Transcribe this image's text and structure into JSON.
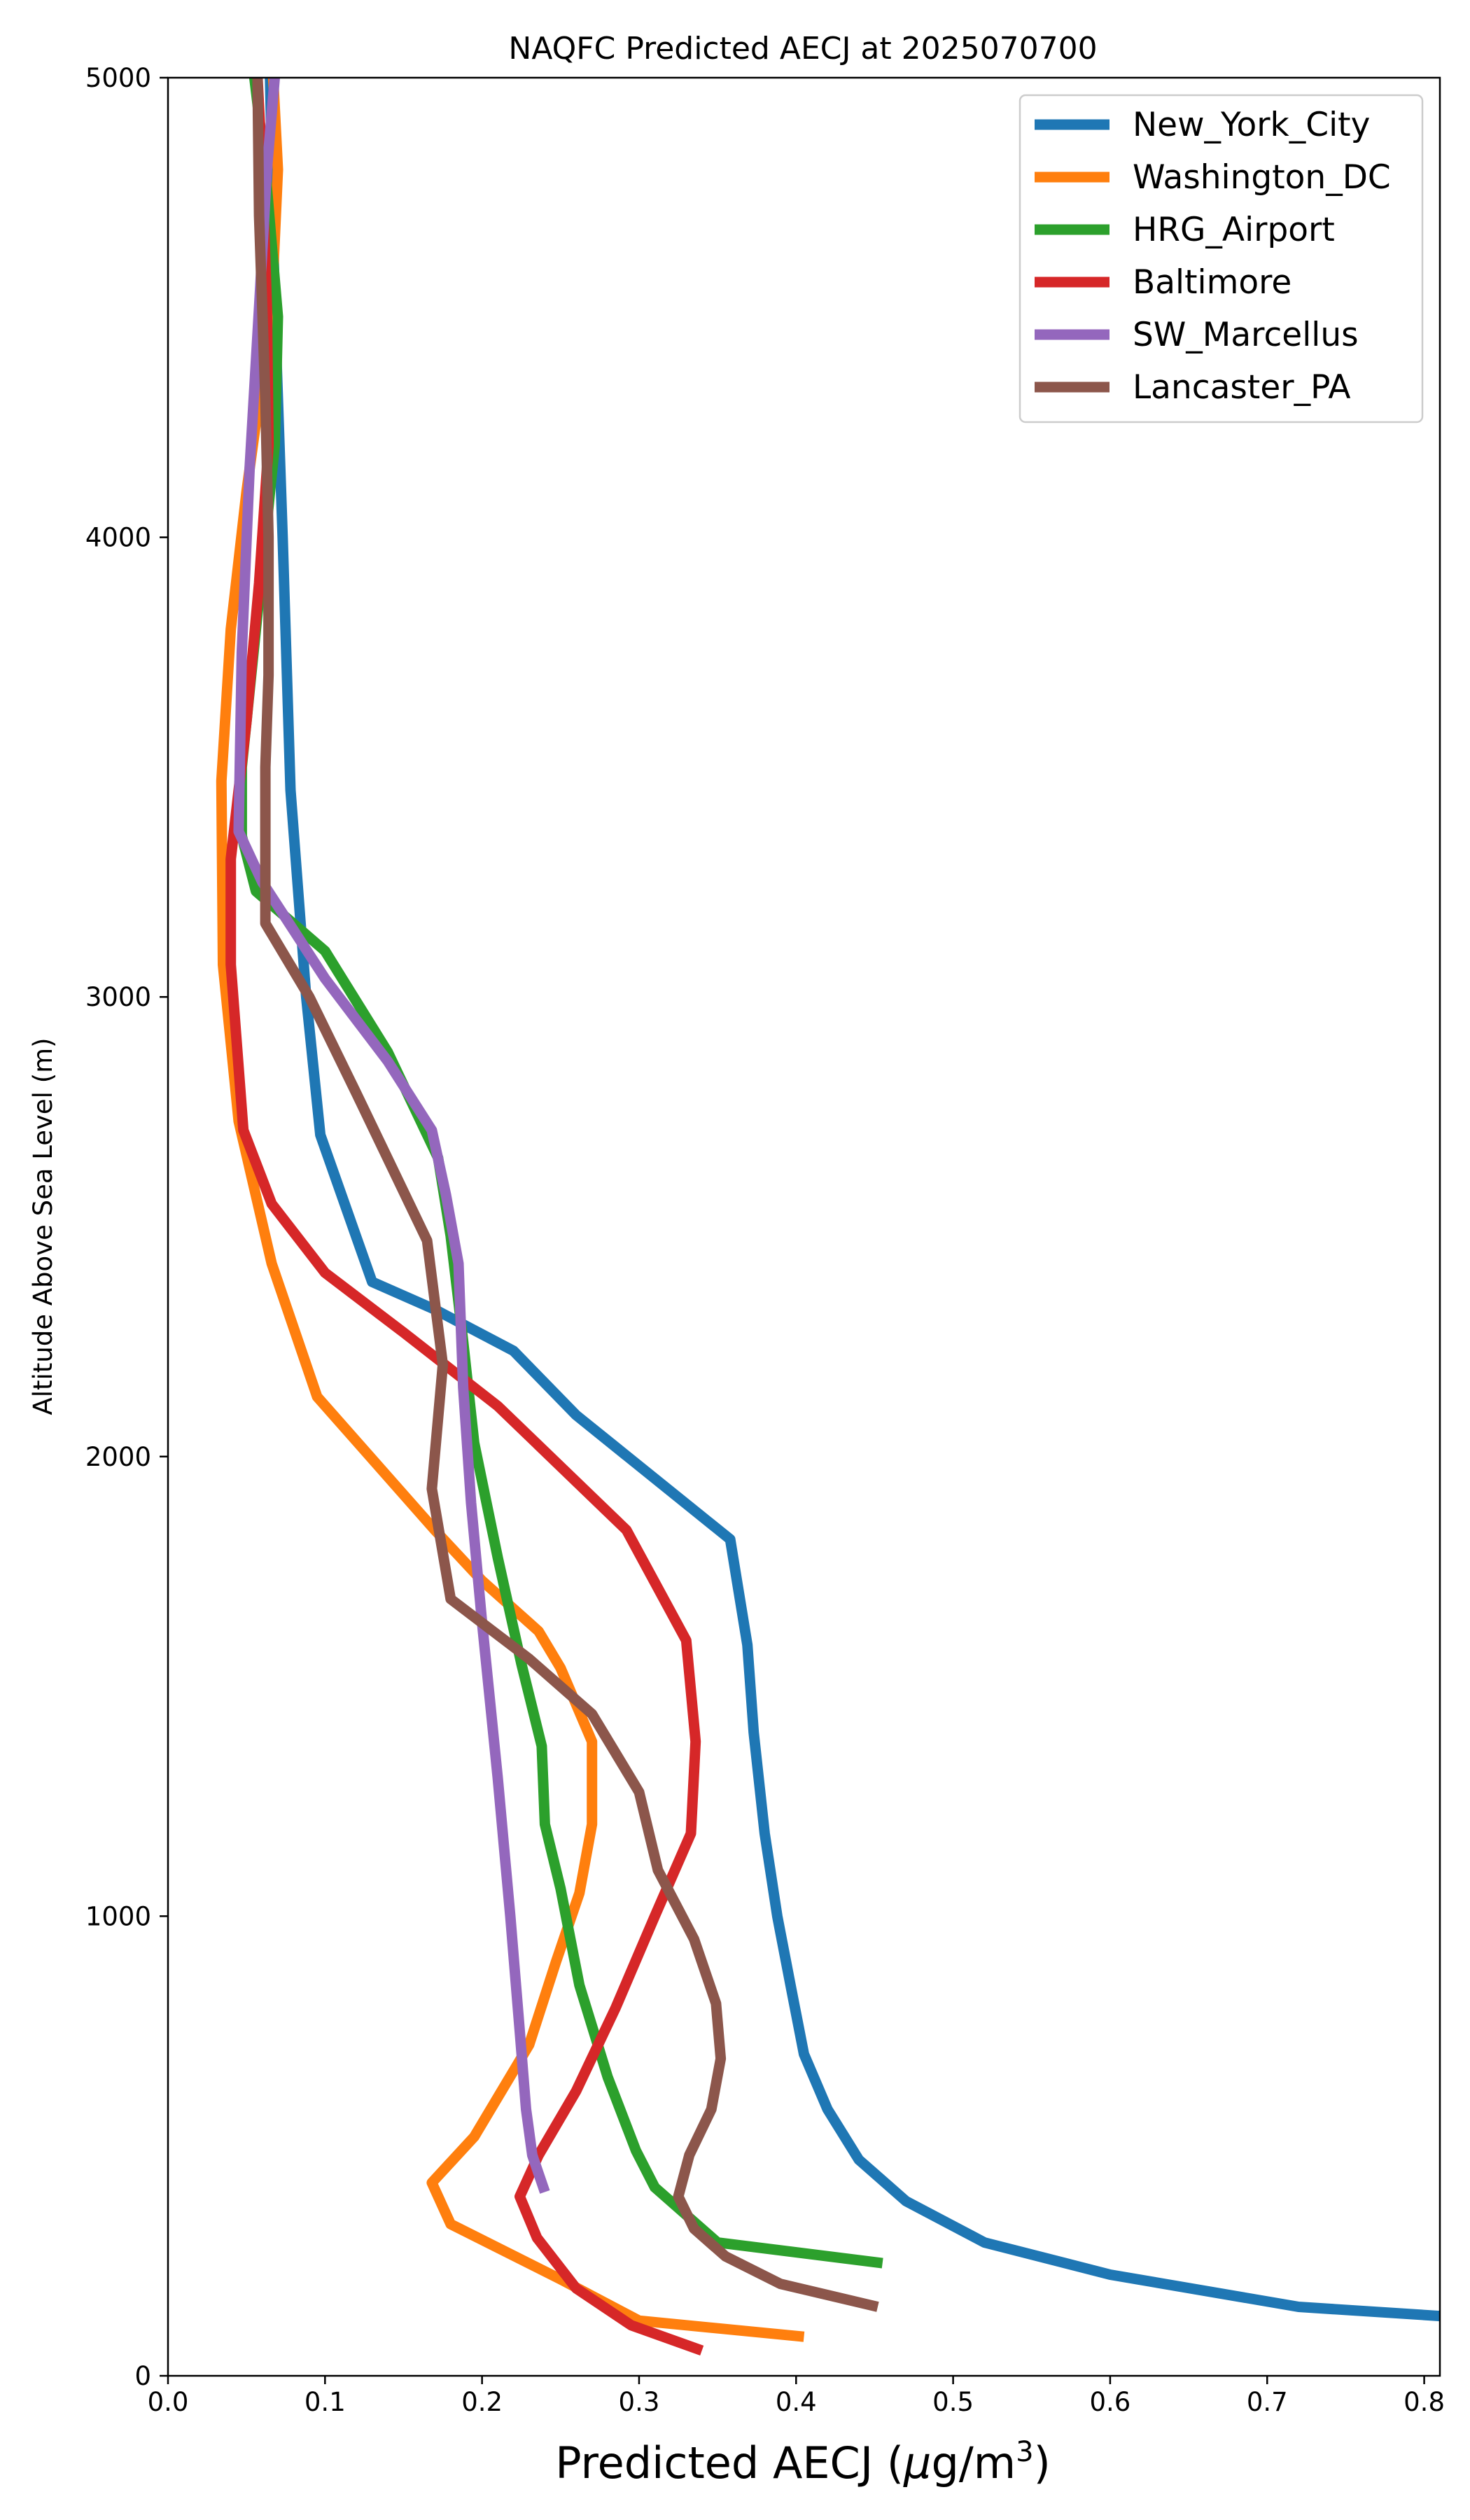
{
  "chart_data": {
    "type": "line",
    "title": "NAQFC Predicted AECJ at 2025070700",
    "xlabel_prefix": "Predicted AECJ (",
    "xlabel_mu": "μ",
    "xlabel_unit": "g/m",
    "xlabel_exp": "3",
    "xlabel_suffix": ")",
    "ylabel": "Altitude Above Sea Level (m)",
    "xlim": [
      0.0,
      0.81
    ],
    "ylim": [
      0,
      5000
    ],
    "xticks": [
      0.0,
      0.1,
      0.2,
      0.3,
      0.4,
      0.5,
      0.6,
      0.7,
      0.8
    ],
    "xtick_labels": [
      "0.0",
      "0.1",
      "0.2",
      "0.3",
      "0.4",
      "0.5",
      "0.6",
      "0.7",
      "0.8"
    ],
    "yticks": [
      0,
      1000,
      2000,
      3000,
      4000,
      5000
    ],
    "ytick_labels": [
      "0",
      "1000",
      "2000",
      "3000",
      "4000",
      "5000"
    ],
    "grid": false,
    "legend_position": "top-right",
    "series": [
      {
        "name": "New_York_City",
        "color": "#1f77b4",
        "points": [
          [
            0.81,
            130
          ],
          [
            0.72,
            150
          ],
          [
            0.6,
            220
          ],
          [
            0.52,
            290
          ],
          [
            0.47,
            380
          ],
          [
            0.44,
            470
          ],
          [
            0.42,
            580
          ],
          [
            0.405,
            700
          ],
          [
            0.397,
            840
          ],
          [
            0.388,
            1000
          ],
          [
            0.38,
            1180
          ],
          [
            0.373,
            1400
          ],
          [
            0.369,
            1590
          ],
          [
            0.358,
            1820
          ],
          [
            0.26,
            2090
          ],
          [
            0.22,
            2230
          ],
          [
            0.17,
            2320
          ],
          [
            0.13,
            2380
          ],
          [
            0.097,
            2700
          ],
          [
            0.088,
            3000
          ],
          [
            0.078,
            3450
          ],
          [
            0.073,
            4000
          ],
          [
            0.068,
            4500
          ],
          [
            0.065,
            5000
          ]
        ]
      },
      {
        "name": "Washington_DC",
        "color": "#ff7f0e",
        "points": [
          [
            0.405,
            85
          ],
          [
            0.3,
            120
          ],
          [
            0.25,
            210
          ],
          [
            0.18,
            330
          ],
          [
            0.168,
            420
          ],
          [
            0.195,
            520
          ],
          [
            0.23,
            720
          ],
          [
            0.247,
            900
          ],
          [
            0.262,
            1050
          ],
          [
            0.27,
            1200
          ],
          [
            0.27,
            1380
          ],
          [
            0.25,
            1540
          ],
          [
            0.236,
            1620
          ],
          [
            0.2,
            1730
          ],
          [
            0.17,
            1840
          ],
          [
            0.095,
            2130
          ],
          [
            0.066,
            2420
          ],
          [
            0.045,
            2730
          ],
          [
            0.035,
            3070
          ],
          [
            0.034,
            3470
          ],
          [
            0.04,
            3800
          ],
          [
            0.05,
            4100
          ],
          [
            0.066,
            4500
          ],
          [
            0.07,
            4800
          ],
          [
            0.067,
            5000
          ]
        ]
      },
      {
        "name": "HRG_Airport",
        "color": "#2ca02c",
        "points": [
          [
            0.455,
            245
          ],
          [
            0.35,
            290
          ],
          [
            0.31,
            410
          ],
          [
            0.298,
            490
          ],
          [
            0.28,
            650
          ],
          [
            0.262,
            850
          ],
          [
            0.25,
            1060
          ],
          [
            0.24,
            1200
          ],
          [
            0.238,
            1370
          ],
          [
            0.225,
            1550
          ],
          [
            0.21,
            1780
          ],
          [
            0.195,
            2030
          ],
          [
            0.188,
            2250
          ],
          [
            0.18,
            2480
          ],
          [
            0.172,
            2650
          ],
          [
            0.14,
            2880
          ],
          [
            0.1,
            3100
          ],
          [
            0.056,
            3230
          ],
          [
            0.047,
            3350
          ],
          [
            0.047,
            3500
          ],
          [
            0.056,
            3800
          ],
          [
            0.068,
            4200
          ],
          [
            0.07,
            4480
          ],
          [
            0.062,
            4800
          ],
          [
            0.055,
            5000
          ]
        ]
      },
      {
        "name": "Baltimore",
        "color": "#d62728",
        "points": [
          [
            0.34,
            55
          ],
          [
            0.295,
            110
          ],
          [
            0.26,
            190
          ],
          [
            0.235,
            300
          ],
          [
            0.224,
            390
          ],
          [
            0.236,
            480
          ],
          [
            0.26,
            620
          ],
          [
            0.285,
            800
          ],
          [
            0.31,
            1000
          ],
          [
            0.333,
            1180
          ],
          [
            0.336,
            1380
          ],
          [
            0.33,
            1600
          ],
          [
            0.292,
            1840
          ],
          [
            0.21,
            2110
          ],
          [
            0.15,
            2270
          ],
          [
            0.1,
            2400
          ],
          [
            0.066,
            2550
          ],
          [
            0.048,
            2710
          ],
          [
            0.04,
            3070
          ],
          [
            0.04,
            3300
          ],
          [
            0.05,
            3600
          ],
          [
            0.058,
            3900
          ],
          [
            0.064,
            4200
          ],
          [
            0.063,
            4500
          ],
          [
            0.06,
            4800
          ],
          [
            0.057,
            5000
          ]
        ]
      },
      {
        "name": "SW_Marcellus",
        "color": "#9467bd",
        "points": [
          [
            0.24,
            400
          ],
          [
            0.232,
            480
          ],
          [
            0.228,
            580
          ],
          [
            0.224,
            750
          ],
          [
            0.218,
            1000
          ],
          [
            0.21,
            1300
          ],
          [
            0.2,
            1640
          ],
          [
            0.193,
            1900
          ],
          [
            0.188,
            2150
          ],
          [
            0.185,
            2420
          ],
          [
            0.177,
            2570
          ],
          [
            0.168,
            2710
          ],
          [
            0.14,
            2860
          ],
          [
            0.1,
            3040
          ],
          [
            0.06,
            3250
          ],
          [
            0.045,
            3360
          ],
          [
            0.047,
            3750
          ],
          [
            0.052,
            4150
          ],
          [
            0.058,
            4500
          ],
          [
            0.063,
            4800
          ],
          [
            0.068,
            5000
          ]
        ]
      },
      {
        "name": "Lancaster_PA",
        "color": "#8c564b",
        "points": [
          [
            0.452,
            150
          ],
          [
            0.39,
            200
          ],
          [
            0.355,
            260
          ],
          [
            0.335,
            320
          ],
          [
            0.325,
            390
          ],
          [
            0.332,
            480
          ],
          [
            0.346,
            580
          ],
          [
            0.352,
            690
          ],
          [
            0.349,
            810
          ],
          [
            0.335,
            950
          ],
          [
            0.312,
            1100
          ],
          [
            0.3,
            1270
          ],
          [
            0.27,
            1440
          ],
          [
            0.23,
            1560
          ],
          [
            0.18,
            1690
          ],
          [
            0.168,
            1930
          ],
          [
            0.175,
            2200
          ],
          [
            0.165,
            2470
          ],
          [
            0.12,
            2790
          ],
          [
            0.09,
            3000
          ],
          [
            0.062,
            3160
          ],
          [
            0.062,
            3500
          ],
          [
            0.064,
            3700
          ],
          [
            0.064,
            4000
          ],
          [
            0.062,
            4300
          ],
          [
            0.058,
            4700
          ],
          [
            0.057,
            5000
          ]
        ]
      }
    ]
  }
}
